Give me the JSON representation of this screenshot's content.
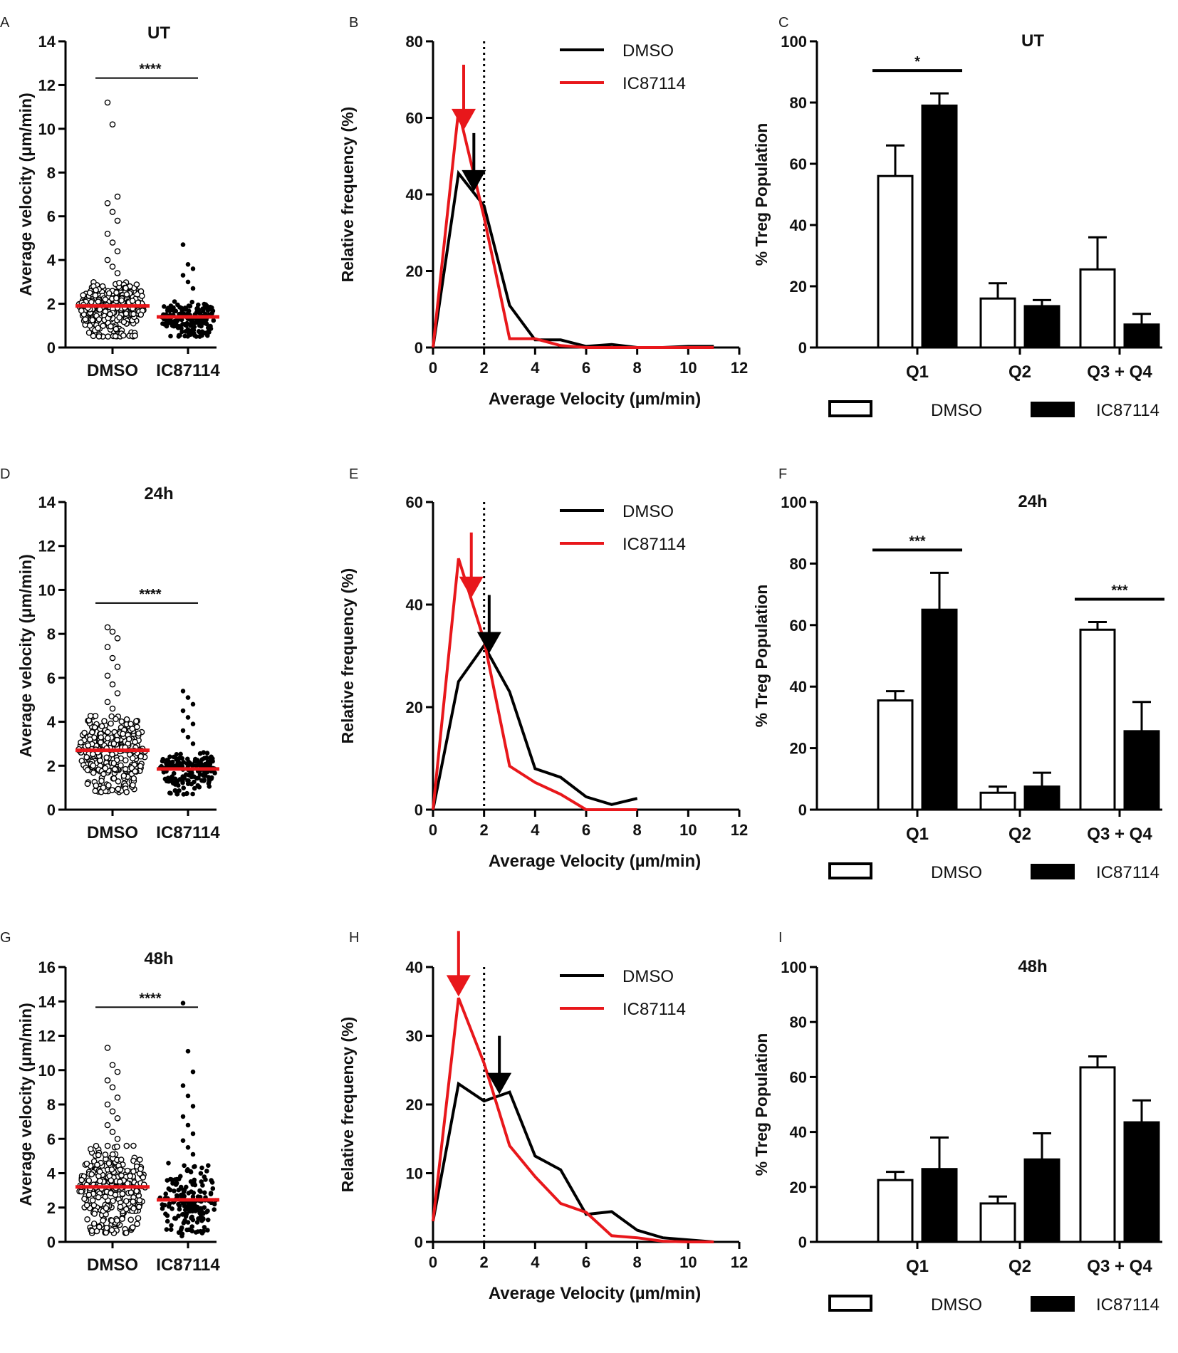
{
  "figure": {
    "colors": {
      "dmso": "#000000",
      "ic": "#e8171b",
      "median": "#e8171b"
    },
    "legend": {
      "dmso": "DMSO",
      "ic": "IC87114"
    }
  },
  "chart_data": [
    {
      "panel": "A",
      "type": "scatter",
      "title": "UT",
      "ylabel": "Average velocity (μm/min)",
      "xlabel": "",
      "categories": [
        "DMSO",
        "IC87114"
      ],
      "ylim": [
        0,
        14
      ],
      "yticks": [
        0,
        2,
        4,
        6,
        8,
        10,
        12,
        14
      ],
      "medians": [
        1.9,
        1.4
      ],
      "ranges": [
        [
          0.5,
          3.0
        ],
        [
          0.5,
          2.1
        ]
      ],
      "outliers": [
        [
          11.2,
          10.2,
          6.9,
          6.6,
          6.2,
          5.8,
          5.2,
          4.8,
          4.4,
          4.0,
          3.7,
          3.4
        ],
        [
          4.7,
          3.8,
          3.6,
          3.3,
          3.0,
          2.7
        ]
      ],
      "significance": "****"
    },
    {
      "panel": "B",
      "type": "line",
      "title": "",
      "ylabel": "Relative frequency (%)",
      "xlabel": "Average Velocity (µm/min)",
      "xlim": [
        0,
        12
      ],
      "xticks": [
        0,
        2,
        4,
        6,
        8,
        10,
        12
      ],
      "ylim": [
        0,
        80
      ],
      "yticks": [
        0,
        20,
        40,
        60,
        80
      ],
      "series": [
        {
          "name": "DMSO",
          "x": [
            0,
            1,
            2,
            3,
            4,
            5,
            6,
            7,
            8,
            9,
            10,
            11
          ],
          "y": [
            0,
            45.5,
            37,
            11,
            2,
            2,
            0.3,
            0.8,
            0,
            0,
            0.3,
            0.3
          ]
        },
        {
          "name": "IC87114",
          "x": [
            0,
            1,
            2,
            3,
            4,
            5,
            6,
            7,
            8,
            9,
            10,
            11
          ],
          "y": [
            0,
            62,
            34,
            2.3,
            2.3,
            0.5,
            0,
            0,
            0,
            0,
            0,
            0
          ]
        }
      ],
      "dotted_line_x": 2,
      "arrows_x": {
        "IC87114": 1.2,
        "DMSO": 1.6
      }
    },
    {
      "panel": "C",
      "type": "bar",
      "title": "UT",
      "ylabel": "% Treg Population",
      "xlabel": "",
      "categories": [
        "Q1",
        "Q2",
        "Q3 + Q4"
      ],
      "ylim": [
        0,
        100
      ],
      "yticks": [
        0,
        20,
        40,
        60,
        80,
        100
      ],
      "series": [
        {
          "name": "DMSO",
          "values": [
            56,
            16,
            25.5
          ],
          "errors": [
            10,
            5,
            10.5
          ]
        },
        {
          "name": "IC87114",
          "values": [
            79,
            13.5,
            7.5
          ],
          "errors": [
            4,
            2,
            3.5
          ]
        }
      ],
      "significance": [
        {
          "group": 0,
          "label": "*"
        }
      ]
    },
    {
      "panel": "D",
      "type": "scatter",
      "title": "24h",
      "ylabel": "Average velocity (μm/min)",
      "xlabel": "",
      "categories": [
        "DMSO",
        "IC87114"
      ],
      "ylim": [
        0,
        14
      ],
      "yticks": [
        0,
        2,
        4,
        6,
        8,
        10,
        12,
        14
      ],
      "medians": [
        2.7,
        1.85
      ],
      "ranges": [
        [
          0.8,
          4.3
        ],
        [
          0.7,
          2.8
        ]
      ],
      "outliers": [
        [
          8.3,
          8.1,
          7.8,
          7.4,
          6.9,
          6.5,
          6.1,
          5.7,
          5.3,
          4.9,
          4.6
        ],
        [
          5.4,
          5.1,
          4.8,
          4.5,
          4.2,
          3.9,
          3.6,
          3.3,
          3.0
        ]
      ],
      "significance": "****"
    },
    {
      "panel": "E",
      "type": "line",
      "title": "",
      "ylabel": "Relative frequency (%)",
      "xlabel": "Average Velocity (µm/min)",
      "xlim": [
        0,
        12
      ],
      "xticks": [
        0,
        2,
        4,
        6,
        8,
        10,
        12
      ],
      "ylim": [
        0,
        60
      ],
      "yticks": [
        0,
        20,
        40,
        60
      ],
      "series": [
        {
          "name": "DMSO",
          "x": [
            0,
            1,
            2,
            3,
            4,
            5,
            6,
            7,
            8
          ],
          "y": [
            0,
            25,
            32,
            23,
            8,
            6.3,
            2.5,
            1,
            2.2
          ]
        },
        {
          "name": "IC87114",
          "x": [
            0,
            1,
            2,
            3,
            4,
            5,
            6,
            7,
            8
          ],
          "y": [
            0,
            49,
            33,
            8.5,
            5.3,
            3,
            0,
            0,
            0
          ]
        }
      ],
      "dotted_line_x": 2,
      "arrows_x": {
        "IC87114": 1.5,
        "DMSO": 2.2
      }
    },
    {
      "panel": "F",
      "type": "bar",
      "title": "24h",
      "ylabel": "% Treg Population",
      "xlabel": "",
      "categories": [
        "Q1",
        "Q2",
        "Q3 + Q4"
      ],
      "ylim": [
        0,
        100
      ],
      "yticks": [
        0,
        20,
        40,
        60,
        80,
        100
      ],
      "series": [
        {
          "name": "DMSO",
          "values": [
            35.5,
            5.5,
            58.5
          ],
          "errors": [
            3,
            2,
            2.5
          ]
        },
        {
          "name": "IC87114",
          "values": [
            65,
            7.5,
            25.5
          ],
          "errors": [
            12,
            4.5,
            9.5
          ]
        }
      ],
      "significance": [
        {
          "group": 0,
          "label": "***"
        },
        {
          "group": 2,
          "label": "***"
        }
      ]
    },
    {
      "panel": "G",
      "type": "scatter",
      "title": "48h",
      "ylabel": "Average velocity (μm/min)",
      "xlabel": "",
      "categories": [
        "DMSO",
        "IC87114"
      ],
      "ylim": [
        0,
        16
      ],
      "yticks": [
        0,
        2,
        4,
        6,
        8,
        10,
        12,
        14,
        16
      ],
      "medians": [
        3.2,
        2.45
      ],
      "ranges": [
        [
          0.5,
          5.6
        ],
        [
          0.3,
          4.7
        ]
      ],
      "outliers": [
        [
          11.3,
          10.3,
          9.9,
          9.4,
          9.0,
          8.4,
          8.0,
          7.6,
          7.2,
          6.8,
          6.4,
          6.0
        ],
        [
          13.9,
          11.1,
          9.9,
          9.1,
          8.5,
          7.9,
          7.3,
          6.8,
          6.3,
          5.9,
          5.5,
          5.1
        ]
      ],
      "significance": "****"
    },
    {
      "panel": "H",
      "type": "line",
      "title": "",
      "ylabel": "Relative frequency (%)",
      "xlabel": "Average Velocity (µm/min)",
      "xlim": [
        0,
        12
      ],
      "xticks": [
        0,
        2,
        4,
        6,
        8,
        10,
        12
      ],
      "ylim": [
        0,
        40
      ],
      "yticks": [
        0,
        10,
        20,
        30,
        40
      ],
      "series": [
        {
          "name": "DMSO",
          "x": [
            0,
            1,
            2,
            3,
            4,
            5,
            6,
            7,
            8,
            9,
            10,
            11
          ],
          "y": [
            3,
            23,
            20.5,
            21.8,
            12.5,
            10.5,
            4,
            4.4,
            1.7,
            0.6,
            0.3,
            0
          ]
        },
        {
          "name": "IC87114",
          "x": [
            0,
            1,
            2,
            3,
            4,
            5,
            6,
            7,
            8,
            9,
            10,
            11
          ],
          "y": [
            3,
            35.5,
            26,
            14,
            9.5,
            5.6,
            4.3,
            0.9,
            0.6,
            0.1,
            0,
            0
          ]
        }
      ],
      "dotted_line_x": 2,
      "arrows_x": {
        "IC87114": 1.0,
        "DMSO": 2.6
      }
    },
    {
      "panel": "I",
      "type": "bar",
      "title": "48h",
      "ylabel": "% Treg Population",
      "xlabel": "",
      "categories": [
        "Q1",
        "Q2",
        "Q3 + Q4"
      ],
      "ylim": [
        0,
        100
      ],
      "yticks": [
        0,
        20,
        40,
        60,
        80,
        100
      ],
      "series": [
        {
          "name": "DMSO",
          "values": [
            22.5,
            14,
            63.5
          ],
          "errors": [
            3,
            2.5,
            4
          ]
        },
        {
          "name": "IC87114",
          "values": [
            26.5,
            30,
            43.5
          ],
          "errors": [
            11.5,
            9.5,
            8
          ]
        }
      ],
      "significance": []
    }
  ]
}
